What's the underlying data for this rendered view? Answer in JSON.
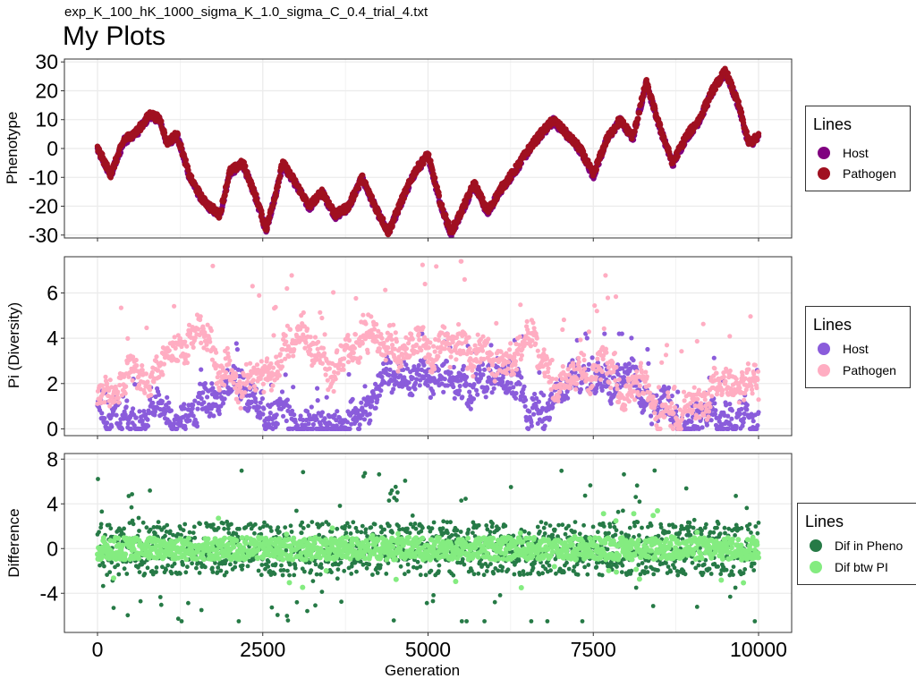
{
  "figure": {
    "subtitle": "exp_K_100_hK_1000_sigma_K_1.0_sigma_C_0.4_trial_4.txt",
    "title": "My Plots",
    "xlabel": "Generation"
  },
  "chart_data": [
    {
      "type": "scatter",
      "ylabel": "Phenotype",
      "xlim": [
        0,
        10000
      ],
      "ylim": [
        -31,
        31
      ],
      "xticks": [
        "0",
        "2500",
        "5000",
        "7500",
        "10000"
      ],
      "yticks": [
        "-30",
        "-20",
        "-10",
        "0",
        "10",
        "20",
        "30"
      ],
      "grid": true,
      "legend": {
        "title": "Lines",
        "position": "right",
        "entries": [
          "Host",
          "Pathogen"
        ]
      },
      "colors": [
        "#800080",
        "#a01020"
      ],
      "series": [
        {
          "name": "Host",
          "spread": 0.8
        },
        {
          "name": "Pathogen",
          "spread": 0.8
        }
      ],
      "anchors": [
        [
          0,
          0
        ],
        [
          200,
          -9
        ],
        [
          400,
          3
        ],
        [
          600,
          6
        ],
        [
          800,
          12
        ],
        [
          950,
          10
        ],
        [
          1050,
          2
        ],
        [
          1200,
          5
        ],
        [
          1400,
          -10
        ],
        [
          1600,
          -18
        ],
        [
          1750,
          -21
        ],
        [
          1850,
          -23
        ],
        [
          2000,
          -8
        ],
        [
          2200,
          -5
        ],
        [
          2400,
          -17
        ],
        [
          2550,
          -28
        ],
        [
          2700,
          -15
        ],
        [
          2800,
          -5
        ],
        [
          3000,
          -12
        ],
        [
          3200,
          -20
        ],
        [
          3400,
          -15
        ],
        [
          3600,
          -23
        ],
        [
          3800,
          -20
        ],
        [
          4000,
          -10
        ],
        [
          4200,
          -20
        ],
        [
          4400,
          -29
        ],
        [
          4600,
          -18
        ],
        [
          4800,
          -8
        ],
        [
          5000,
          -2
        ],
        [
          5200,
          -20
        ],
        [
          5350,
          -29
        ],
        [
          5500,
          -22
        ],
        [
          5700,
          -12
        ],
        [
          5900,
          -22
        ],
        [
          6100,
          -14
        ],
        [
          6300,
          -8
        ],
        [
          6500,
          -1
        ],
        [
          6700,
          5
        ],
        [
          6900,
          10
        ],
        [
          7100,
          5
        ],
        [
          7300,
          0
        ],
        [
          7500,
          -9
        ],
        [
          7700,
          3
        ],
        [
          7900,
          10
        ],
        [
          8100,
          4
        ],
        [
          8300,
          23
        ],
        [
          8500,
          8
        ],
        [
          8700,
          -5
        ],
        [
          8900,
          4
        ],
        [
          9100,
          10
        ],
        [
          9300,
          20
        ],
        [
          9500,
          27
        ],
        [
          9700,
          15
        ],
        [
          9850,
          2
        ],
        [
          10000,
          4
        ]
      ]
    },
    {
      "type": "scatter",
      "ylabel": "Pi (Diversity)",
      "xlim": [
        0,
        10000
      ],
      "ylim": [
        -0.3,
        7.6
      ],
      "xticks": [
        "0",
        "2500",
        "5000",
        "7500",
        "10000"
      ],
      "yticks": [
        "0",
        "2",
        "4",
        "6"
      ],
      "grid": true,
      "legend": {
        "title": "Lines",
        "position": "right",
        "entries": [
          "Host",
          "Pathogen"
        ]
      },
      "colors": [
        "#8a5cdb",
        "#ffadc2"
      ],
      "series": [
        {
          "name": "Host",
          "base": 1.0,
          "max": 4.2
        },
        {
          "name": "Pathogen",
          "base": 1.1,
          "max": 7.4
        }
      ]
    },
    {
      "type": "scatter",
      "ylabel": "Difference",
      "xlim": [
        0,
        10000
      ],
      "ylim": [
        -7.5,
        8.5
      ],
      "xticks": [
        "0",
        "2500",
        "5000",
        "7500",
        "10000"
      ],
      "yticks": [
        "-4",
        "0",
        "4",
        "8"
      ],
      "grid": true,
      "legend": {
        "title": "Lines",
        "position": "right",
        "entries": [
          "Dif in Pheno",
          "Dif btw PI"
        ]
      },
      "colors": [
        "#267a46",
        "#84ec80"
      ],
      "series": [
        {
          "name": "Dif in Pheno",
          "min": -6.5,
          "max": 7.8
        },
        {
          "name": "Dif btw PI",
          "min": -3.5,
          "max": 4.5
        }
      ]
    }
  ]
}
